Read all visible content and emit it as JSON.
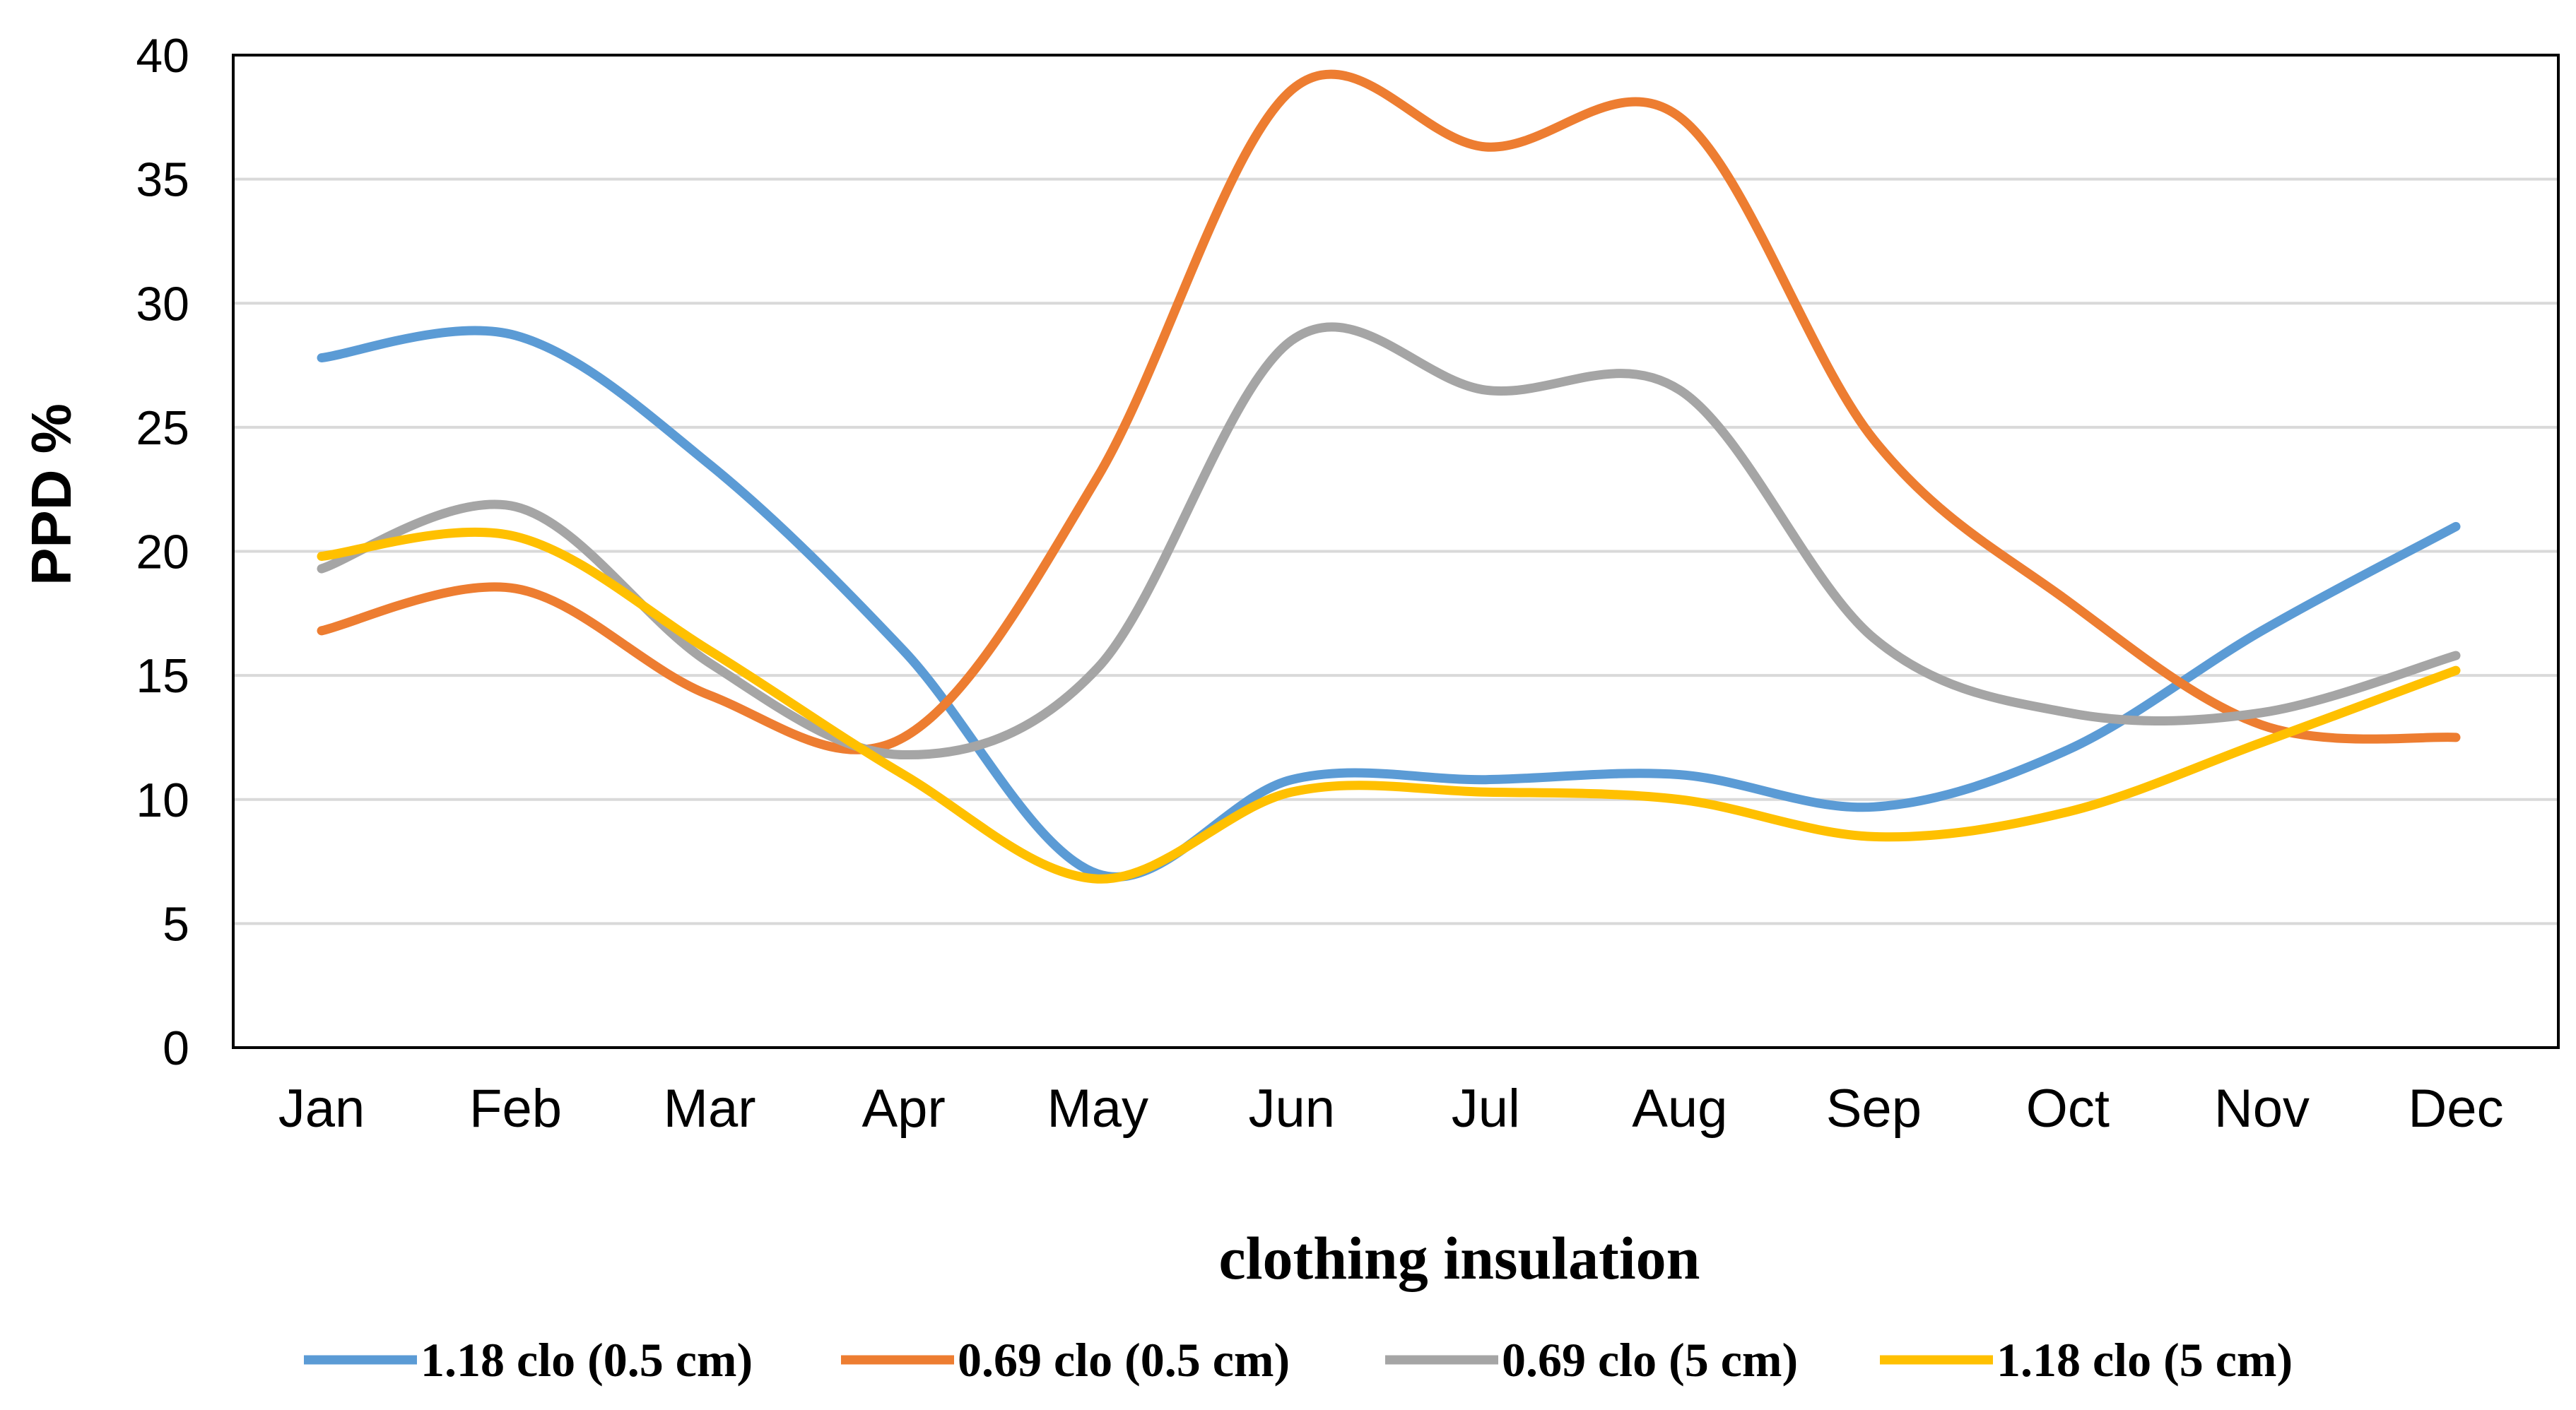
{
  "chart_data": {
    "type": "line",
    "title": "",
    "xlabel": "clothing insulation",
    "ylabel": "PPD %",
    "ylim": [
      0,
      40
    ],
    "yticks": [
      "0",
      "5",
      "10",
      "15",
      "20",
      "25",
      "30",
      "35",
      "40"
    ],
    "grid": true,
    "legend_position": "bottom",
    "categories": [
      "Jan",
      "Feb",
      "Mar",
      "Apr",
      "May",
      "Jun",
      "Jul",
      "Aug",
      "Sep",
      "Oct",
      "Nov",
      "Dec"
    ],
    "series": [
      {
        "name": "1.18 clo (0.5 cm)",
        "color": "#5B9BD5",
        "values": [
          27.8,
          28.7,
          23.5,
          16.0,
          7.0,
          10.8,
          10.8,
          11.0,
          9.7,
          12.0,
          16.8,
          21.0
        ]
      },
      {
        "name": "0.69 clo (0.5 cm)",
        "color": "#ED7D31",
        "values": [
          16.8,
          18.5,
          14.2,
          12.5,
          23.0,
          38.6,
          36.3,
          37.5,
          24.5,
          18.0,
          13.0,
          12.5
        ]
      },
      {
        "name": "0.69 clo (5 cm)",
        "color": "#A5A5A5",
        "values": [
          19.3,
          21.8,
          15.5,
          11.8,
          15.3,
          28.5,
          26.5,
          26.5,
          16.5,
          13.5,
          13.5,
          15.8
        ]
      },
      {
        "name": "1.18 clo (5 cm)",
        "color": "#FFC000",
        "values": [
          19.8,
          20.6,
          16.0,
          11.0,
          6.8,
          10.3,
          10.3,
          10.0,
          8.5,
          9.5,
          12.3,
          15.2
        ]
      }
    ]
  }
}
